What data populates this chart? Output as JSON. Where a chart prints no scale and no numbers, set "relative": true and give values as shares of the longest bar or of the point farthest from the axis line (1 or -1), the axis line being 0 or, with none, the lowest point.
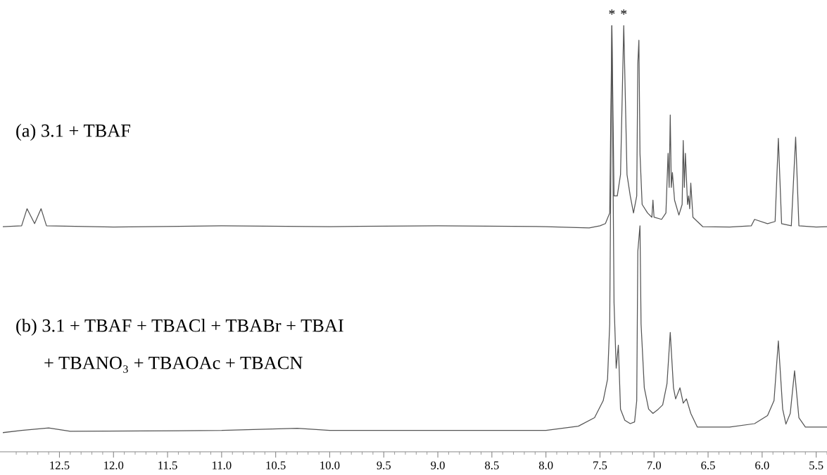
{
  "chart_data": {
    "type": "line",
    "relative": true,
    "grid": false,
    "legend": false,
    "marker": "none",
    "line_style": "solid",
    "xlim": [
      13.05,
      5.4
    ],
    "xticks": [
      12.5,
      {
        "value": 12.0,
        "label": "12.0"
      },
      11.5,
      {
        "value": 11.0,
        "label": "11.0"
      },
      10.5,
      {
        "value": 10.0,
        "label": "10.0"
      },
      9.5,
      {
        "value": 9.0,
        "label": "9.0"
      },
      8.5,
      {
        "value": 8.0,
        "label": "8.0"
      },
      7.5,
      {
        "value": 7.0,
        "label": "7.0"
      },
      6.5,
      {
        "value": 6.0,
        "label": "6.0"
      },
      5.5,
      {
        "value": 12.9,
        "label": null
      },
      {
        "value": 12.8,
        "label": null
      },
      {
        "value": 12.7,
        "label": null
      },
      {
        "value": 12.6,
        "label": null
      },
      {
        "value": 12.4,
        "label": null
      },
      {
        "value": 12.3,
        "label": null
      },
      {
        "value": 12.2,
        "label": null
      },
      {
        "value": 12.1,
        "label": null
      },
      {
        "value": 11.9,
        "label": null
      },
      {
        "value": 11.8,
        "label": null
      },
      {
        "value": 11.7,
        "label": null
      },
      {
        "value": 11.6,
        "label": null
      },
      {
        "value": 11.4,
        "label": null
      },
      {
        "value": 11.3,
        "label": null
      },
      {
        "value": 11.2,
        "label": null
      },
      {
        "value": 11.1,
        "label": null
      },
      {
        "value": 10.9,
        "label": null
      },
      {
        "value": 10.8,
        "label": null
      },
      {
        "value": 10.7,
        "label": null
      },
      {
        "value": 10.6,
        "label": null
      },
      {
        "value": 10.4,
        "label": null
      },
      {
        "value": 10.3,
        "label": null
      },
      {
        "value": 10.2,
        "label": null
      },
      {
        "value": 10.1,
        "label": null
      },
      {
        "value": 9.9,
        "label": null
      },
      {
        "value": 9.8,
        "label": null
      },
      {
        "value": 9.7,
        "label": null
      },
      {
        "value": 9.6,
        "label": null
      },
      {
        "value": 9.4,
        "label": null
      },
      {
        "value": 9.3,
        "label": null
      },
      {
        "value": 9.2,
        "label": null
      },
      {
        "value": 9.1,
        "label": null
      },
      {
        "value": 8.9,
        "label": null
      },
      {
        "value": 8.8,
        "label": null
      },
      {
        "value": 8.7,
        "label": null
      },
      {
        "value": 8.6,
        "label": null
      },
      {
        "value": 8.4,
        "label": null
      },
      {
        "value": 8.3,
        "label": null
      },
      {
        "value": 8.2,
        "label": null
      },
      {
        "value": 8.1,
        "label": null
      },
      {
        "value": 7.9,
        "label": null
      },
      {
        "value": 7.8,
        "label": null
      },
      {
        "value": 7.7,
        "label": null
      },
      {
        "value": 7.6,
        "label": null
      },
      {
        "value": 7.4,
        "label": null
      },
      {
        "value": 7.3,
        "label": null
      },
      {
        "value": 7.2,
        "label": null
      },
      {
        "value": 7.1,
        "label": null
      },
      {
        "value": 6.9,
        "label": null
      },
      {
        "value": 6.8,
        "label": null
      },
      {
        "value": 6.7,
        "label": null
      },
      {
        "value": 6.6,
        "label": null
      },
      {
        "value": 6.4,
        "label": null
      },
      {
        "value": 6.3,
        "label": null
      },
      {
        "value": 6.2,
        "label": null
      },
      {
        "value": 6.1,
        "label": null
      },
      {
        "value": 5.9,
        "label": null
      },
      {
        "value": 5.8,
        "label": null
      },
      {
        "value": 5.7,
        "label": null
      },
      {
        "value": 5.6,
        "label": null
      },
      {
        "value": 5.4,
        "label": null
      }
    ],
    "series": [
      {
        "color": "#555555",
        "x": [
          13.02,
          12.85,
          12.8,
          12.73,
          12.67,
          12.62,
          12.0,
          11.0,
          10.0,
          9.0,
          8.0,
          7.6,
          7.5,
          7.45,
          7.41,
          7.39,
          7.37,
          7.34,
          7.31,
          7.28,
          7.25,
          7.22,
          7.19,
          7.16,
          7.15,
          7.14,
          7.13,
          7.11,
          7.06,
          7.02,
          7.01,
          7.0,
          6.93,
          6.89,
          6.87,
          6.86,
          6.85,
          6.84,
          6.83,
          6.81,
          6.77,
          6.74,
          6.73,
          6.72,
          6.71,
          6.69,
          6.68,
          6.67,
          6.66,
          6.64,
          6.55,
          6.3,
          6.1,
          6.07,
          5.95,
          5.88,
          5.85,
          5.82,
          5.73,
          5.69,
          5.66,
          5.5,
          5.4
        ],
        "values": [
          0.528,
          0.53,
          0.57,
          0.535,
          0.57,
          0.53,
          0.527,
          0.53,
          0.528,
          0.53,
          0.528,
          0.525,
          0.53,
          0.535,
          0.56,
          1,
          0.6,
          0.6,
          0.65,
          1,
          0.65,
          0.6,
          0.56,
          0.6,
          0.91,
          0.965,
          0.7,
          0.58,
          0.56,
          0.55,
          0.59,
          0.55,
          0.545,
          0.56,
          0.7,
          0.62,
          0.79,
          0.62,
          0.655,
          0.59,
          0.555,
          0.58,
          0.73,
          0.62,
          0.7,
          0.58,
          0.6,
          0.57,
          0.63,
          0.55,
          0.528,
          0.527,
          0.53,
          0.545,
          0.535,
          0.54,
          0.735,
          0.535,
          0.53,
          0.738,
          0.53,
          0.527,
          0.528
        ]
      },
      {
        "color": "#555555",
        "x": [
          13.02,
          12.85,
          12.6,
          12.4,
          11.0,
          10.3,
          10.0,
          9.0,
          8.0,
          7.7,
          7.55,
          7.47,
          7.43,
          7.41,
          7.39,
          7.37,
          7.35,
          7.33,
          7.31,
          7.27,
          7.22,
          7.18,
          7.16,
          7.15,
          7.13,
          7.12,
          7.09,
          7.05,
          7.01,
          6.96,
          6.92,
          6.88,
          6.85,
          6.82,
          6.8,
          6.76,
          6.73,
          6.7,
          6.66,
          6.6,
          6.3,
          6.07,
          5.95,
          5.89,
          5.85,
          5.81,
          5.78,
          5.74,
          5.7,
          5.66,
          5.6,
          5.4
        ],
        "values": [
          0.045,
          0.05,
          0.056,
          0.048,
          0.05,
          0.055,
          0.05,
          0.05,
          0.05,
          0.06,
          0.08,
          0.12,
          0.17,
          0.3,
          1,
          0.35,
          0.196,
          0.25,
          0.1,
          0.074,
          0.066,
          0.07,
          0.12,
          0.47,
          0.53,
          0.3,
          0.15,
          0.1,
          0.09,
          0.1,
          0.11,
          0.16,
          0.28,
          0.15,
          0.124,
          0.15,
          0.114,
          0.124,
          0.09,
          0.058,
          0.058,
          0.066,
          0.085,
          0.12,
          0.26,
          0.1,
          0.065,
          0.09,
          0.19,
          0.08,
          0.058,
          0.058
        ]
      }
    ],
    "annotations": [
      "(a) 3.1 + TBAF",
      "(b) 3.1 + TBAF + TBACl + TBABr + TBAI",
      "+ TBANO₃ + TBAOAc + TBACN",
      {
        "text": "*",
        "x": 7.39,
        "y": 1
      },
      {
        "text": "*",
        "x": 7.28,
        "y": 1
      }
    ]
  }
}
